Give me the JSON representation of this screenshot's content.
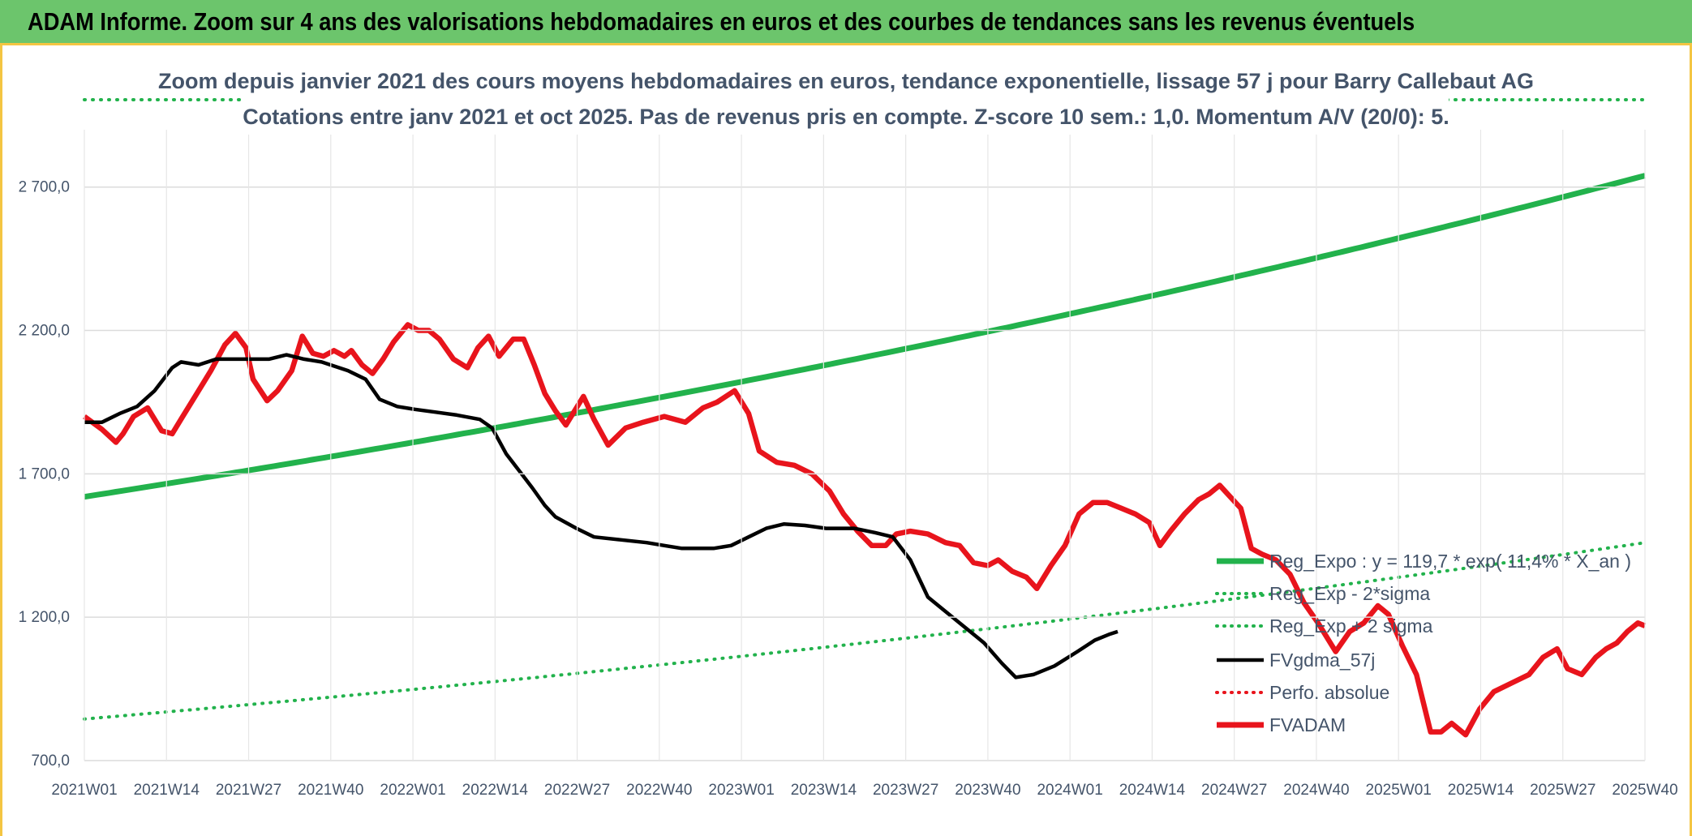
{
  "banner": {
    "title": "ADAM Informe. Zoom sur 4 ans des valorisations hebdomadaires en euros et des courbes de tendances sans les revenus éventuels"
  },
  "chart_data": {
    "type": "line",
    "title_line1": "Zoom depuis janvier 2021 des cours moyens hebdomadaires en euros, tendance exponentielle, lissage 57 j pour Barry Callebaut AG",
    "title_line2": "Cotations entre janv 2021 et oct 2025. Pas de revenus pris en compte. Z-score 10 sem.: 1,0. Momentum A/V (20/0): 5.",
    "ylim": [
      700,
      2900
    ],
    "y_ticks": [
      700,
      1200,
      1700,
      2200,
      2700
    ],
    "y_tick_labels": [
      "700,0",
      "1 200,0",
      "1 700,0",
      "2 200,0",
      "2 700,0"
    ],
    "x_count": 248,
    "x_ticks": [
      0,
      13,
      26,
      39,
      52,
      65,
      78,
      91,
      104,
      117,
      130,
      143,
      156,
      169,
      182,
      195,
      208,
      221,
      234,
      247
    ],
    "x_tick_labels": [
      "2021W01",
      "2021W14",
      "2021W27",
      "2021W40",
      "2022W01",
      "2022W14",
      "2022W27",
      "2022W40",
      "2023W01",
      "2023W14",
      "2023W27",
      "2023W40",
      "2024W01",
      "2024W14",
      "2024W27",
      "2024W40",
      "2025W01",
      "2025W14",
      "2025W27",
      "2025W40"
    ],
    "colors": {
      "reg_expo": "#22b24c",
      "reg_band": "#22b24c",
      "perfo": "#e8141c",
      "fvgdma": "#000000",
      "fvadam": "#e8141c"
    },
    "legend": [
      {
        "key": "reg_expo",
        "label": "Reg_Expo : y = 119,7 * exp( 11,4% * X_an )",
        "style": "solid-thick"
      },
      {
        "key": "reg_minus",
        "label": "Reg_Exp - 2*sigma",
        "style": "dotted"
      },
      {
        "key": "reg_plus",
        "label": "Reg_Exp + 2 sigma",
        "style": "dotted"
      },
      {
        "key": "fvgdma",
        "label": "FVgdma_57j",
        "style": "solid"
      },
      {
        "key": "perfo",
        "label": "Perfo. absolue",
        "style": "dotted-red"
      },
      {
        "key": "fvadam",
        "label": "FVADAM",
        "style": "solid-thick-red"
      }
    ],
    "series": [
      {
        "name": "Reg_Expo",
        "type": "exponential",
        "start": 1620,
        "end": 2740
      },
      {
        "name": "Reg_Exp - 2*sigma",
        "type": "exponential",
        "start": 845,
        "end": 1460
      },
      {
        "name": "Reg_Exp + 2 sigma",
        "type": "exponential",
        "start": 2940,
        "end": 2940,
        "note": "runs off the top of the plot"
      },
      {
        "name": "FVgdma_57j",
        "points": [
          [
            0,
            1880
          ],
          [
            10,
            1880
          ],
          [
            20,
            1910
          ],
          [
            30,
            1935
          ],
          [
            40,
            1990
          ],
          [
            50,
            2070
          ],
          [
            55,
            2090
          ],
          [
            65,
            2080
          ],
          [
            75,
            2100
          ],
          [
            90,
            2100
          ],
          [
            105,
            2100
          ],
          [
            115,
            2115
          ],
          [
            125,
            2100
          ],
          [
            135,
            2090
          ],
          [
            150,
            2060
          ],
          [
            160,
            2030
          ],
          [
            168,
            1960
          ],
          [
            178,
            1935
          ],
          [
            188,
            1925
          ],
          [
            200,
            1915
          ],
          [
            212,
            1905
          ],
          [
            225,
            1890
          ],
          [
            232,
            1860
          ],
          [
            240,
            1770
          ],
          [
            250,
            1690
          ],
          [
            255,
            1650
          ],
          [
            262,
            1590
          ],
          [
            268,
            1550
          ],
          [
            280,
            1510
          ],
          [
            290,
            1480
          ],
          [
            305,
            1470
          ],
          [
            320,
            1460
          ],
          [
            330,
            1450
          ],
          [
            340,
            1440
          ],
          [
            350,
            1440
          ],
          [
            358,
            1440
          ],
          [
            368,
            1450
          ],
          [
            378,
            1480
          ],
          [
            388,
            1510
          ],
          [
            398,
            1525
          ],
          [
            410,
            1520
          ],
          [
            422,
            1510
          ],
          [
            438,
            1510
          ],
          [
            450,
            1495
          ],
          [
            460,
            1480
          ],
          [
            470,
            1400
          ],
          [
            480,
            1270
          ],
          [
            490,
            1220
          ],
          [
            500,
            1170
          ],
          [
            508,
            1130
          ],
          [
            512,
            1110
          ],
          [
            522,
            1040
          ],
          [
            530,
            990
          ],
          [
            540,
            1000
          ],
          [
            552,
            1030
          ],
          [
            565,
            1080
          ],
          [
            575,
            1120
          ],
          [
            583,
            1140
          ],
          [
            588,
            1150
          ]
        ]
      },
      {
        "name": "FVADAM",
        "points": [
          [
            0,
            1900
          ],
          [
            10,
            1855
          ],
          [
            18,
            1810
          ],
          [
            22,
            1840
          ],
          [
            28,
            1900
          ],
          [
            36,
            1930
          ],
          [
            44,
            1850
          ],
          [
            50,
            1840
          ],
          [
            56,
            1900
          ],
          [
            64,
            1980
          ],
          [
            72,
            2060
          ],
          [
            80,
            2150
          ],
          [
            86,
            2190
          ],
          [
            92,
            2140
          ],
          [
            96,
            2030
          ],
          [
            104,
            1955
          ],
          [
            110,
            1990
          ],
          [
            118,
            2060
          ],
          [
            124,
            2180
          ],
          [
            130,
            2120
          ],
          [
            136,
            2110
          ],
          [
            142,
            2130
          ],
          [
            148,
            2110
          ],
          [
            152,
            2130
          ],
          [
            158,
            2080
          ],
          [
            164,
            2050
          ],
          [
            170,
            2100
          ],
          [
            176,
            2160
          ],
          [
            184,
            2220
          ],
          [
            190,
            2200
          ],
          [
            196,
            2200
          ],
          [
            202,
            2170
          ],
          [
            210,
            2100
          ],
          [
            218,
            2070
          ],
          [
            224,
            2140
          ],
          [
            230,
            2180
          ],
          [
            236,
            2110
          ],
          [
            244,
            2170
          ],
          [
            250,
            2170
          ],
          [
            256,
            2080
          ],
          [
            262,
            1980
          ],
          [
            268,
            1920
          ],
          [
            274,
            1870
          ],
          [
            284,
            1970
          ],
          [
            290,
            1890
          ],
          [
            298,
            1800
          ],
          [
            308,
            1860
          ],
          [
            318,
            1880
          ],
          [
            330,
            1900
          ],
          [
            342,
            1880
          ],
          [
            352,
            1930
          ],
          [
            360,
            1950
          ],
          [
            370,
            1990
          ],
          [
            378,
            1910
          ],
          [
            384,
            1780
          ],
          [
            394,
            1740
          ],
          [
            404,
            1730
          ],
          [
            414,
            1700
          ],
          [
            424,
            1640
          ],
          [
            432,
            1560
          ],
          [
            440,
            1500
          ],
          [
            448,
            1450
          ],
          [
            456,
            1450
          ],
          [
            462,
            1490
          ],
          [
            470,
            1500
          ],
          [
            480,
            1490
          ],
          [
            490,
            1460
          ],
          [
            498,
            1450
          ],
          [
            506,
            1390
          ],
          [
            514,
            1380
          ],
          [
            520,
            1400
          ],
          [
            528,
            1360
          ],
          [
            536,
            1340
          ],
          [
            542,
            1300
          ],
          [
            550,
            1380
          ],
          [
            558,
            1450
          ],
          [
            566,
            1560
          ],
          [
            574,
            1600
          ],
          [
            582,
            1600
          ],
          [
            590,
            1580
          ],
          [
            598,
            1560
          ],
          [
            606,
            1530
          ],
          [
            612,
            1450
          ],
          [
            618,
            1500
          ],
          [
            626,
            1560
          ],
          [
            634,
            1610
          ],
          [
            640,
            1630
          ],
          [
            646,
            1660
          ],
          [
            652,
            1620
          ],
          [
            658,
            1580
          ],
          [
            664,
            1440
          ],
          [
            670,
            1420
          ],
          [
            678,
            1400
          ],
          [
            686,
            1350
          ],
          [
            694,
            1250
          ],
          [
            702,
            1180
          ],
          [
            712,
            1080
          ],
          [
            720,
            1150
          ],
          [
            728,
            1180
          ],
          [
            736,
            1240
          ],
          [
            742,
            1210
          ],
          [
            750,
            1100
          ],
          [
            758,
            1000
          ],
          [
            766,
            800
          ],
          [
            772,
            800
          ],
          [
            778,
            830
          ],
          [
            786,
            790
          ],
          [
            794,
            880
          ],
          [
            802,
            940
          ],
          [
            812,
            970
          ],
          [
            822,
            1000
          ],
          [
            830,
            1060
          ],
          [
            838,
            1090
          ],
          [
            844,
            1020
          ],
          [
            852,
            1000
          ],
          [
            860,
            1060
          ],
          [
            866,
            1090
          ],
          [
            872,
            1110
          ],
          [
            878,
            1150
          ],
          [
            884,
            1180
          ],
          [
            888,
            1170
          ]
        ]
      }
    ]
  }
}
